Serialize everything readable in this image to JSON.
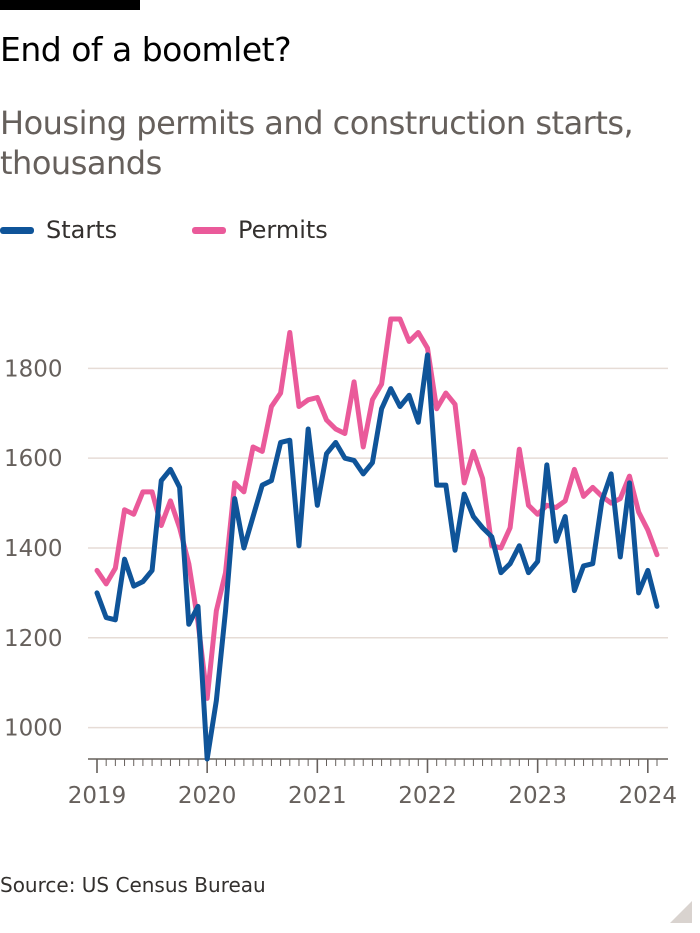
{
  "title": "End of a boomlet?",
  "subtitle": "Housing permits and construction starts, thousands",
  "source": "Source: US Census Bureau",
  "colors": {
    "starts": "#0f5499",
    "permits": "#ea5a9a",
    "grid": "#e6dcd6",
    "axis": "#66605c"
  },
  "legend": [
    {
      "label": "Starts",
      "color": "#0f5499"
    },
    {
      "label": "Permits",
      "color": "#ea5a9a"
    }
  ],
  "chart_data": {
    "type": "line",
    "title": "End of a boomlet?",
    "subtitle": "Housing permits and construction starts, thousands",
    "x_start": "2019-01",
    "x_frequency": "monthly",
    "xlim": [
      "2019-01",
      "2024-04"
    ],
    "ylim": [
      930,
      1930
    ],
    "y_ticks": [
      1000,
      1200,
      1400,
      1600,
      1800
    ],
    "x_ticks": [
      "2019",
      "2020",
      "2021",
      "2022",
      "2023",
      "2024"
    ],
    "grid": "horizontal",
    "legend_position": "top-left",
    "series": [
      {
        "name": "Starts",
        "color": "#0f5499",
        "values": [
          1300,
          1245,
          1240,
          1375,
          1315,
          1325,
          1350,
          1550,
          1575,
          1535,
          1230,
          1270,
          930,
          1060,
          1260,
          1510,
          1400,
          1470,
          1540,
          1550,
          1635,
          1640,
          1405,
          1665,
          1495,
          1610,
          1635,
          1600,
          1595,
          1565,
          1590,
          1710,
          1755,
          1715,
          1740,
          1680,
          1830,
          1540,
          1540,
          1395,
          1520,
          1470,
          1445,
          1425,
          1345,
          1365,
          1405,
          1345,
          1370,
          1585,
          1415,
          1470,
          1305,
          1360,
          1365,
          1505,
          1565,
          1380,
          1545,
          1300,
          1350,
          1270
        ]
      },
      {
        "name": "Permits",
        "color": "#ea5a9a",
        "values": [
          1350,
          1320,
          1355,
          1485,
          1475,
          1525,
          1525,
          1450,
          1505,
          1445,
          1365,
          1235,
          1065,
          1260,
          1345,
          1545,
          1525,
          1625,
          1615,
          1715,
          1745,
          1880,
          1715,
          1730,
          1735,
          1685,
          1665,
          1655,
          1770,
          1625,
          1730,
          1765,
          1910,
          1910,
          1860,
          1880,
          1845,
          1710,
          1745,
          1720,
          1545,
          1615,
          1555,
          1405,
          1400,
          1445,
          1620,
          1495,
          1475,
          1495,
          1490,
          1505,
          1575,
          1515,
          1535,
          1515,
          1500,
          1510,
          1560,
          1480,
          1440,
          1385
        ]
      }
    ]
  }
}
